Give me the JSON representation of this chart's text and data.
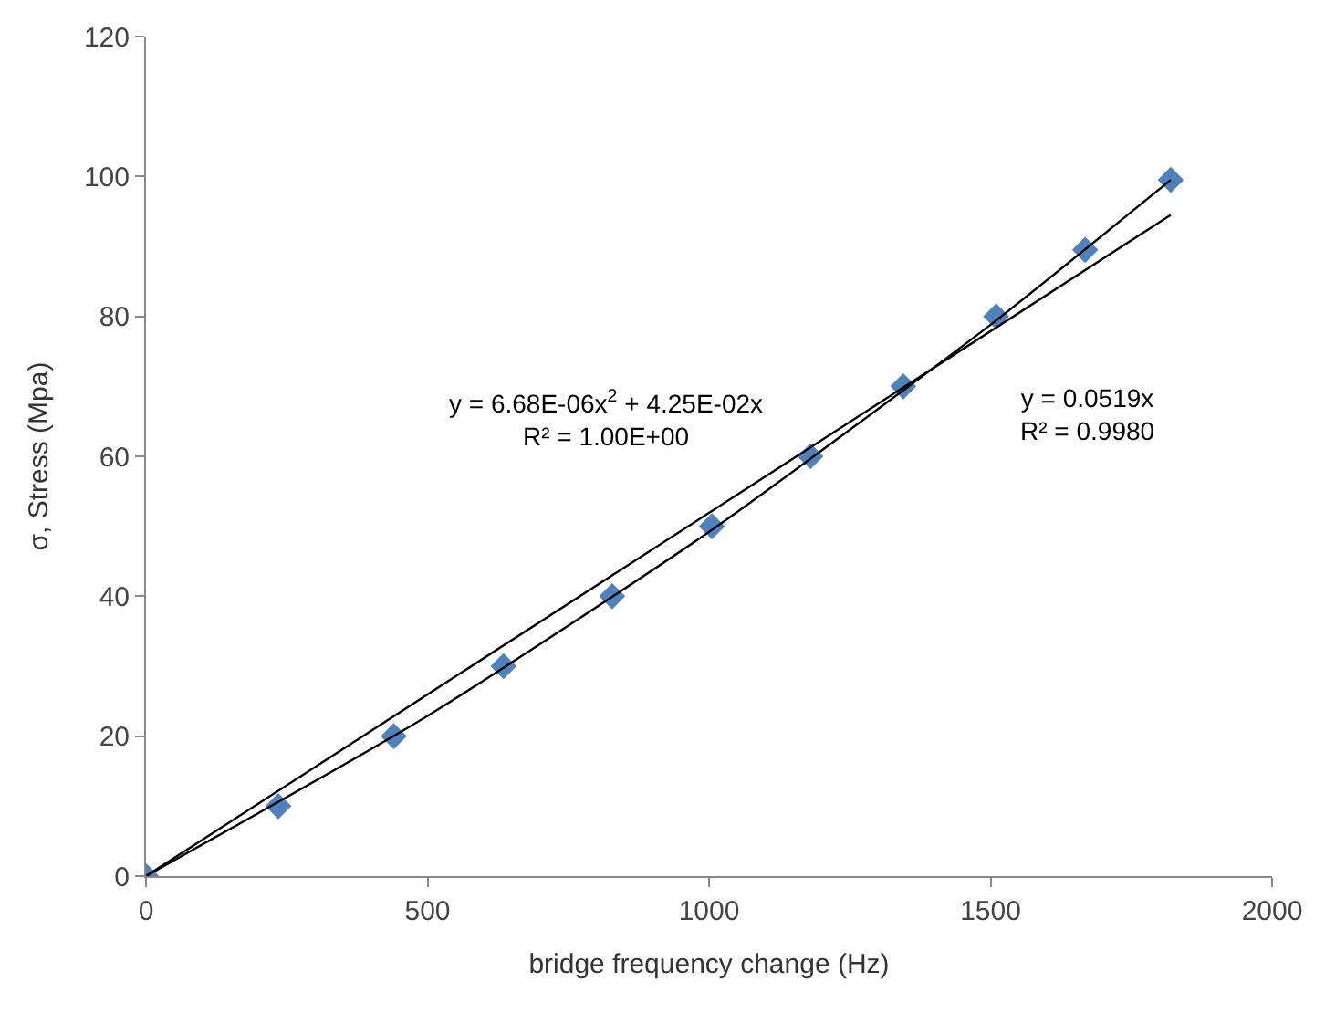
{
  "chart_data": {
    "type": "scatter",
    "xlabel": "bridge frequency change (Hz)",
    "ylabel": "σ, Stress (Mpa)",
    "series": [
      {
        "color": "#4f81bd",
        "marker": "diamond",
        "x": [
          0,
          235,
          440,
          635,
          828,
          1005,
          1180,
          1345,
          1510,
          1668,
          1820
        ],
        "values": [
          0,
          10,
          20,
          30,
          40,
          50,
          60,
          70,
          80,
          89.5,
          99.5
        ]
      },
      {
        "type": "line",
        "color": "#000000",
        "marker": "none",
        "line_style": "solid",
        "x": [
          0,
          1820
        ],
        "values": [
          0,
          94.5
        ]
      },
      {
        "type": "line",
        "color": "#000000",
        "marker": "none",
        "line_style": "solid",
        "x": [
          0,
          500,
          1000,
          1500,
          1820
        ],
        "values": [
          0,
          22.9,
          49.2,
          78.8,
          99.5
        ]
      }
    ],
    "annotations": [
      "y = 6.68E-06x$^{2}$ + 4.25E-02x\nR² = 1.00E+00",
      "y = 0.0519x\nR² = 0.9980"
    ],
    "xlim": [
      0,
      2000
    ],
    "xticks": [
      0,
      500,
      1000,
      1500,
      2000
    ],
    "ylim": [
      0,
      120
    ],
    "yticks": [
      0,
      20,
      40,
      60,
      80,
      100,
      120
    ],
    "grid": false
  }
}
